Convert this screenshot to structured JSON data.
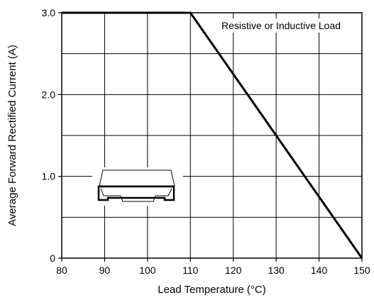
{
  "chart_data": {
    "type": "line",
    "xlabel": "Lead Temperature (°C)",
    "ylabel": "Average Forward Rectified Current (A)",
    "xlim": [
      80,
      150
    ],
    "ylim": [
      0,
      3.0
    ],
    "x_ticks": [
      "80",
      "90",
      "100",
      "110",
      "120",
      "130",
      "140",
      "150"
    ],
    "y_ticks": [
      "0",
      "1.0",
      "2.0",
      "3.0"
    ],
    "grid": true,
    "series": [
      {
        "x": [
          80,
          110,
          150
        ],
        "y": [
          3.0,
          3.0,
          0
        ]
      }
    ],
    "annotations": [
      "Resistive or Inductive Load"
    ],
    "colors": {
      "line": "#000000",
      "grid": "#000000"
    },
    "inset_icon": "smd-diode-package-icon"
  }
}
